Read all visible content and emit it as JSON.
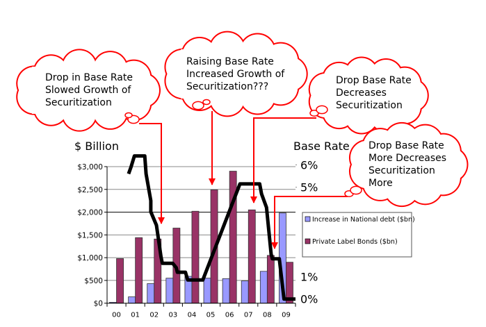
{
  "chart_data": {
    "type": "bar",
    "categories": [
      "00",
      "01",
      "02",
      "03",
      "04",
      "05",
      "06",
      "07",
      "08",
      "09"
    ],
    "series": [
      {
        "name": "Increase in National debt ($bn)",
        "color": "#9999ff",
        "values": [
          20,
          140,
          430,
          550,
          590,
          550,
          540,
          490,
          700,
          1980
        ]
      },
      {
        "name": "Private Label Bonds ($bn)",
        "color": "#993366",
        "values": [
          980,
          1440,
          1410,
          1650,
          2020,
          2490,
          2900,
          2050,
          1050,
          900
        ]
      }
    ],
    "overlay_line": {
      "axis": "right",
      "color": "#000000",
      "x": [
        2001.14,
        2001.27,
        2001.45,
        2002.0,
        2002.07,
        2002.32,
        2002.32,
        2002.62,
        2002.86,
        2002.93,
        2003.48,
        2003.67,
        2003.73,
        2004.16,
        2004.28,
        2005.08,
        2007.05,
        2008.1,
        2008.2,
        2008.46,
        2008.71,
        2008.77,
        2009.14,
        2009.39,
        2010.0
      ],
      "y": [
        5.6,
        5.9,
        6.4,
        6.4,
        5.6,
        4.4,
        3.9,
        3.3,
        1.9,
        1.6,
        1.6,
        1.4,
        1.2,
        1.2,
        0.85,
        0.85,
        5.15,
        5.15,
        4.7,
        4.1,
        2.0,
        1.8,
        1.8,
        0.0,
        0.0
      ]
    },
    "ylabel": "$ Billion",
    "y2label": "Base Rate",
    "ylim": [
      0,
      3000
    ],
    "yticks": [
      "$0",
      "$500",
      "$1,000",
      "$1,500",
      "$2,000",
      "$2,500",
      "$3,000"
    ],
    "y2ticks": [
      "0%",
      "1%",
      "5%",
      "6%"
    ],
    "grid": true,
    "legend_placement": "right"
  },
  "annotations": [
    {
      "lines": [
        "Drop in Base Rate",
        "Slowed Growth of",
        "Securitization"
      ],
      "color": "#ff0000"
    },
    {
      "lines": [
        "Raising Base Rate",
        "Increased Growth of",
        "Securitization???"
      ],
      "color": "#ff0000"
    },
    {
      "lines": [
        "Drop Base Rate",
        "Decreases",
        "Securitization"
      ],
      "color": "#ff0000"
    },
    {
      "lines": [
        "Drop Base Rate",
        "More Decreases",
        "Securitization",
        "More"
      ],
      "color": "#ff0000"
    }
  ]
}
